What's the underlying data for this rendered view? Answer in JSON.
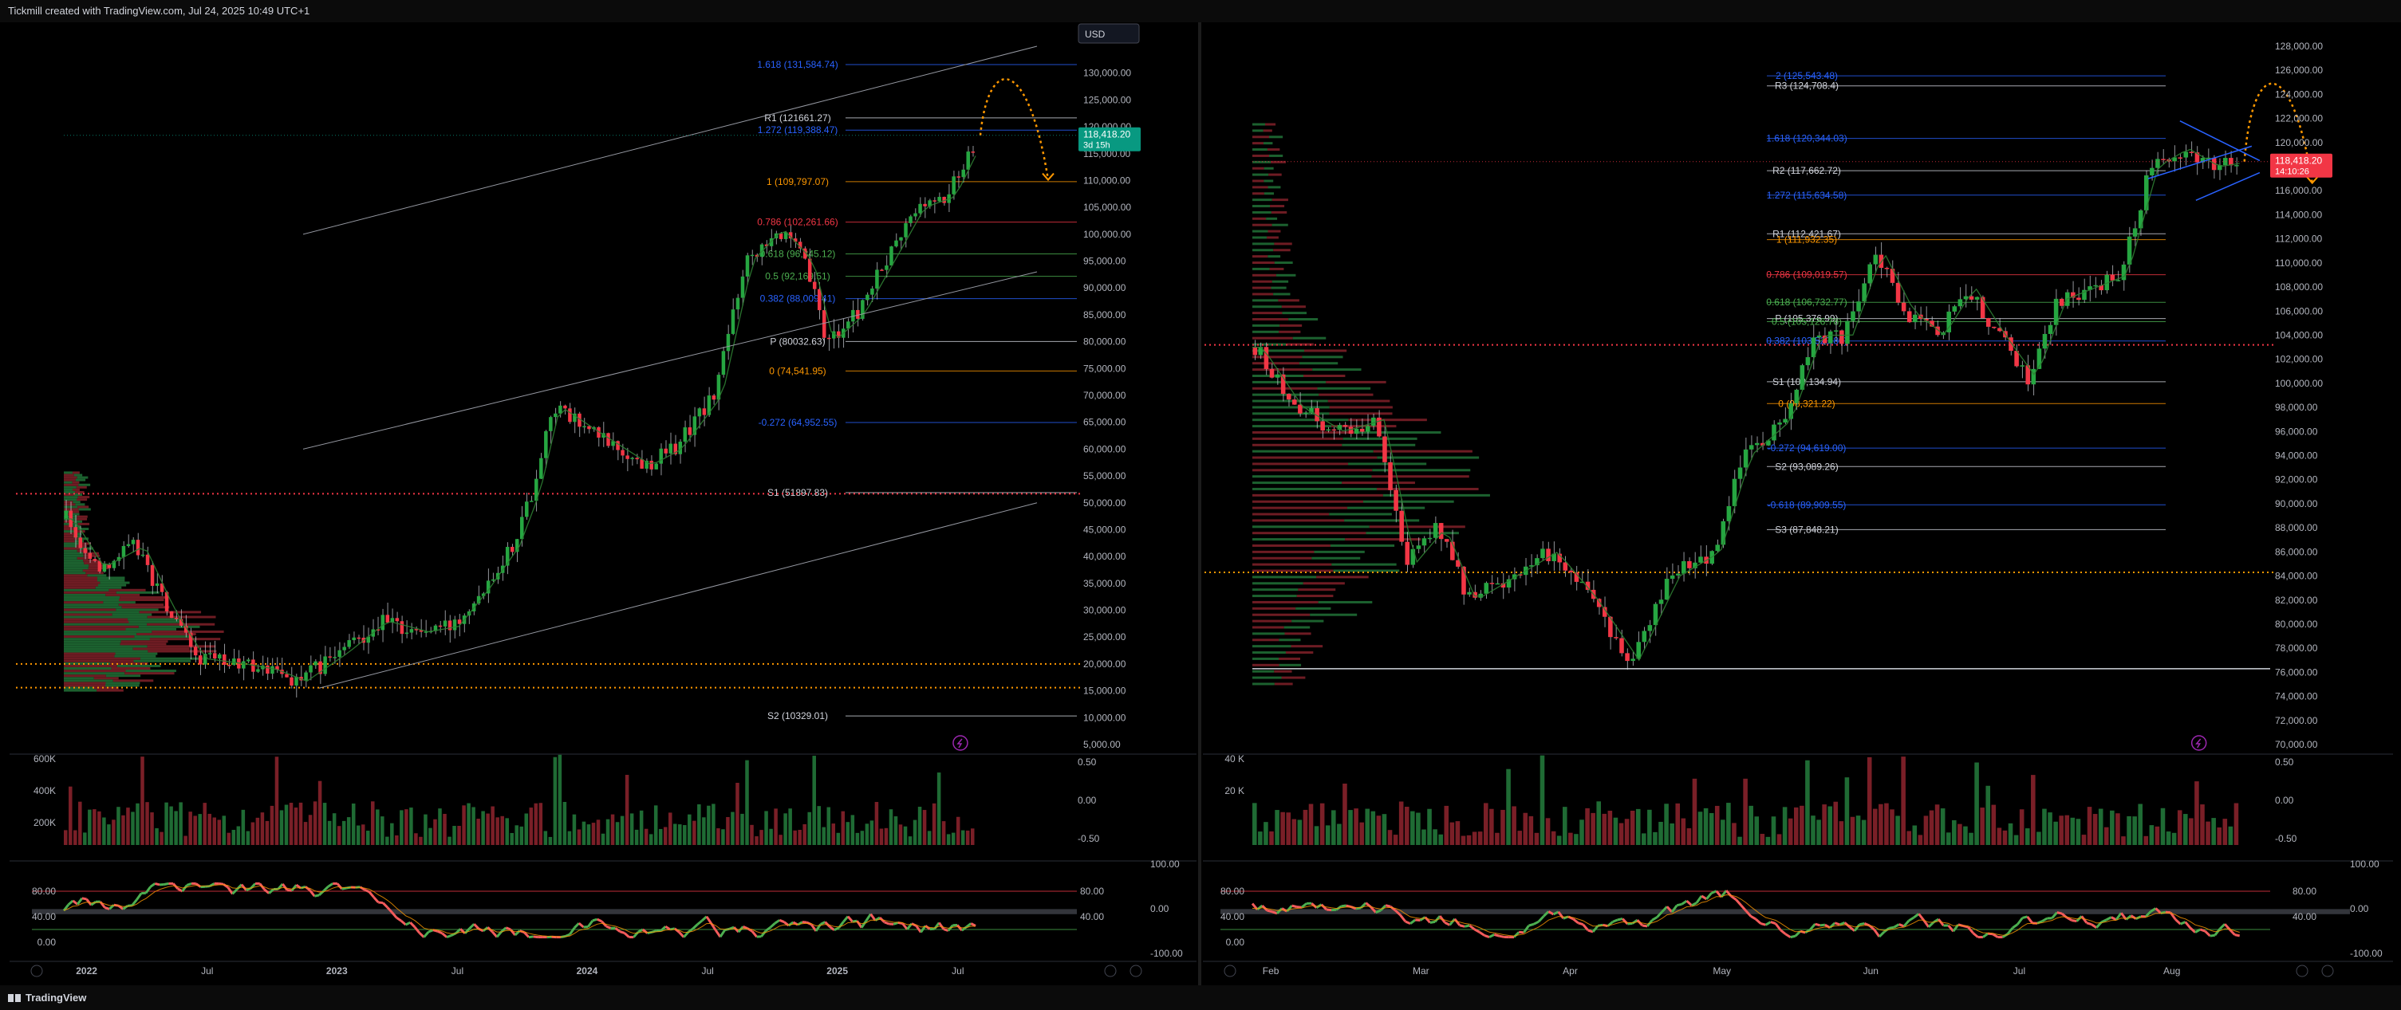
{
  "header": {
    "title": "Tickmill created with TradingView.com, Jul 24, 2025 10:49 UTC+1"
  },
  "footer": {
    "brand": "TradingView"
  },
  "colors": {
    "up": "#26a641",
    "down": "#f23645",
    "fib_blue": "#2962ff",
    "fib_orange": "#ff9800",
    "fib_red": "#f23645",
    "fib_green": "#4caf50",
    "pivot": "#d1d4dc",
    "projection": "#ff9800",
    "price_green": "#089981",
    "price_red": "#f23645"
  },
  "chart_data": [
    {
      "type": "candlestick",
      "title": "",
      "currency_label": "USD",
      "timeframe": "weekly",
      "x_tick_labels": [
        "2022",
        "Jul",
        "2023",
        "Jul",
        "2024",
        "Jul",
        "2025",
        "Jul"
      ],
      "ylim": [
        5000,
        135000
      ],
      "y_ticks": [
        5000,
        10000,
        15000,
        20000,
        25000,
        30000,
        35000,
        40000,
        45000,
        50000,
        55000,
        60000,
        65000,
        70000,
        75000,
        80000,
        85000,
        90000,
        95000,
        100000,
        105000,
        110000,
        115000,
        120000,
        125000,
        130000
      ],
      "y_tick_labels": [
        "5,000.00",
        "10,000.00",
        "15,000.00",
        "20,000.00",
        "25,000.00",
        "30,000.00",
        "35,000.00",
        "40,000.00",
        "45,000.00",
        "50,000.00",
        "55,000.00",
        "60,000.00",
        "65,000.00",
        "70,000.00",
        "75,000.00",
        "80,000.00",
        "85,000.00",
        "90,000.00",
        "95,000.00",
        "100,000.00",
        "105,000.00",
        "110,000.00",
        "115,000.00",
        "120,000.00",
        "125,000.00",
        "130,000.00"
      ],
      "path_points": [
        {
          "t": 0,
          "v": 47000
        },
        {
          "t": 0.03,
          "v": 38000
        },
        {
          "t": 0.07,
          "v": 42000
        },
        {
          "t": 0.1,
          "v": 30000
        },
        {
          "t": 0.13,
          "v": 21000
        },
        {
          "t": 0.17,
          "v": 20000
        },
        {
          "t": 0.2,
          "v": 19000
        },
        {
          "t": 0.23,
          "v": 16800
        },
        {
          "t": 0.27,
          "v": 22000
        },
        {
          "t": 0.31,
          "v": 28000
        },
        {
          "t": 0.35,
          "v": 26000
        },
        {
          "t": 0.38,
          "v": 27000
        },
        {
          "t": 0.41,
          "v": 34000
        },
        {
          "t": 0.44,
          "v": 42000
        },
        {
          "t": 0.46,
          "v": 52000
        },
        {
          "t": 0.48,
          "v": 68000
        },
        {
          "t": 0.52,
          "v": 63000
        },
        {
          "t": 0.57,
          "v": 57000
        },
        {
          "t": 0.6,
          "v": 60000
        },
        {
          "t": 0.64,
          "v": 70000
        },
        {
          "t": 0.67,
          "v": 95000
        },
        {
          "t": 0.7,
          "v": 101000
        },
        {
          "t": 0.73,
          "v": 95000
        },
        {
          "t": 0.75,
          "v": 80000
        },
        {
          "t": 0.78,
          "v": 85000
        },
        {
          "t": 0.81,
          "v": 95000
        },
        {
          "t": 0.84,
          "v": 105000
        },
        {
          "t": 0.87,
          "v": 107000
        },
        {
          "t": 0.9,
          "v": 118400
        }
      ],
      "current_price": {
        "value": 118418.2,
        "label": "118,418.20",
        "countdown": "3d 15h"
      },
      "levels": [
        {
          "name": "1.618 (131,584.74)",
          "value": 131584.74,
          "color": "fib_blue"
        },
        {
          "name": "R1 (121661.27)",
          "value": 121661.27,
          "color": "pivot"
        },
        {
          "name": "1.272 (119,388.47)",
          "value": 119388.47,
          "color": "fib_blue"
        },
        {
          "name": "1 (109,797.07)",
          "value": 109797.07,
          "color": "fib_orange"
        },
        {
          "name": "0.786 (102,261.66)",
          "value": 102261.66,
          "color": "fib_red"
        },
        {
          "name": "0.618 (96,345.12)",
          "value": 96345.12,
          "color": "fib_green"
        },
        {
          "name": "0.5 (92,169.51)",
          "value": 92169.51,
          "color": "fib_green"
        },
        {
          "name": "0.382 (88,009.41)",
          "value": 88009.41,
          "color": "fib_blue"
        },
        {
          "name": "P (80032.63)",
          "value": 80032.63,
          "color": "pivot"
        },
        {
          "name": "0 (74,541.95)",
          "value": 74541.95,
          "color": "fib_orange"
        },
        {
          "name": "-0.272 (64,952.55)",
          "value": 64952.55,
          "color": "fib_blue"
        },
        {
          "name": "S1 (51897.83)",
          "value": 51897.83,
          "color": "pivot"
        },
        {
          "name": "S2 (10329.01)",
          "value": 10329.01,
          "color": "pivot"
        }
      ],
      "dotted_levels": [
        {
          "value": 51700,
          "color": "fib_red"
        },
        {
          "value": 20000,
          "color": "fib_orange"
        },
        {
          "value": 15600,
          "color": "fib_orange"
        }
      ],
      "volume": {
        "y_tick_labels": [
          "600K",
          "400K",
          "200K"
        ],
        "right_labels": [
          "0.50",
          "0.00",
          "-0.50"
        ]
      },
      "oscillator": {
        "left_labels": [
          "80.00",
          "40.00",
          "0.00"
        ],
        "right_labels": [
          "100.00",
          "0.00",
          "-100.00"
        ],
        "mid_labels": [
          "80.00",
          "40.00"
        ]
      }
    },
    {
      "type": "candlestick",
      "title": "",
      "timeframe": "daily",
      "x_tick_labels": [
        "Feb",
        "Mar",
        "Apr",
        "May",
        "Jun",
        "Jul",
        "Aug"
      ],
      "ylim": [
        70000,
        128000
      ],
      "y_ticks": [
        70000,
        72000,
        74000,
        76000,
        78000,
        80000,
        82000,
        84000,
        86000,
        88000,
        90000,
        92000,
        94000,
        96000,
        98000,
        100000,
        102000,
        104000,
        106000,
        108000,
        110000,
        112000,
        114000,
        116000,
        118000,
        120000,
        122000,
        124000,
        126000,
        128000
      ],
      "y_tick_labels": [
        "70,000.00",
        "72,000.00",
        "74,000.00",
        "76,000.00",
        "78,000.00",
        "80,000.00",
        "82,000.00",
        "84,000.00",
        "86,000.00",
        "88,000.00",
        "90,000.00",
        "92,000.00",
        "94,000.00",
        "96,000.00",
        "98,000.00",
        "100,000.00",
        "102,000.00",
        "104,000.00",
        "106,000.00",
        "108,000.00",
        "110,000.00",
        "112,000.00",
        "114,000.00",
        "116,000.00",
        "118,000.00",
        "120,000.00",
        "122,000.00",
        "124,000.00",
        "126,000.00",
        "128,000.00"
      ],
      "path_points": [
        {
          "t": 0,
          "v": 103000
        },
        {
          "t": 0.04,
          "v": 98000
        },
        {
          "t": 0.08,
          "v": 96000
        },
        {
          "t": 0.12,
          "v": 97000
        },
        {
          "t": 0.15,
          "v": 85000
        },
        {
          "t": 0.18,
          "v": 88000
        },
        {
          "t": 0.21,
          "v": 82000
        },
        {
          "t": 0.25,
          "v": 84000
        },
        {
          "t": 0.29,
          "v": 86000
        },
        {
          "t": 0.33,
          "v": 82000
        },
        {
          "t": 0.37,
          "v": 77000
        },
        {
          "t": 0.41,
          "v": 84000
        },
        {
          "t": 0.45,
          "v": 86000
        },
        {
          "t": 0.48,
          "v": 94000
        },
        {
          "t": 0.52,
          "v": 97000
        },
        {
          "t": 0.55,
          "v": 104000
        },
        {
          "t": 0.58,
          "v": 104000
        },
        {
          "t": 0.61,
          "v": 111000
        },
        {
          "t": 0.64,
          "v": 106000
        },
        {
          "t": 0.67,
          "v": 104000
        },
        {
          "t": 0.7,
          "v": 108000
        },
        {
          "t": 0.73,
          "v": 104000
        },
        {
          "t": 0.76,
          "v": 100500
        },
        {
          "t": 0.79,
          "v": 107000
        },
        {
          "t": 0.82,
          "v": 108000
        },
        {
          "t": 0.85,
          "v": 109000
        },
        {
          "t": 0.88,
          "v": 118000
        },
        {
          "t": 0.91,
          "v": 119500
        },
        {
          "t": 0.94,
          "v": 118000
        },
        {
          "t": 0.97,
          "v": 118400
        }
      ],
      "current_price": {
        "value": 118418.2,
        "label": "118,418.20",
        "countdown": "14:10:26"
      },
      "levels": [
        {
          "name": "2 (125,543.48)",
          "value": 125543.48,
          "color": "fib_blue"
        },
        {
          "name": "R3 (124,708.4)",
          "value": 124708.4,
          "color": "pivot"
        },
        {
          "name": "1.618 (120,344.03)",
          "value": 120344.03,
          "color": "fib_blue"
        },
        {
          "name": "R2 (117,662.72)",
          "value": 117662.72,
          "color": "pivot"
        },
        {
          "name": "1.272 (115,634.58)",
          "value": 115634.58,
          "color": "fib_blue"
        },
        {
          "name": "R1 (112,421.67)",
          "value": 112421.67,
          "color": "pivot"
        },
        {
          "name": "1 (111,932.35)",
          "value": 111932.35,
          "color": "fib_orange"
        },
        {
          "name": "0.786 (109,019.57)",
          "value": 109019.57,
          "color": "fib_red"
        },
        {
          "name": "0.618 (106,732.77)",
          "value": 106732.77,
          "color": "fib_green"
        },
        {
          "name": "P (105,376.99)",
          "value": 105376.99,
          "color": "pivot"
        },
        {
          "name": "0.5 (105,126.78)",
          "value": 105126.78,
          "color": "fib_green"
        },
        {
          "name": "0.382 (103,520.80)",
          "value": 103520.8,
          "color": "fib_blue"
        },
        {
          "name": "S1 (100,134.94)",
          "value": 100134.94,
          "color": "pivot"
        },
        {
          "name": "0 (98,321.22)",
          "value": 98321.22,
          "color": "fib_orange"
        },
        {
          "name": "-0.272 (94,619.00)",
          "value": 94619.0,
          "color": "fib_blue"
        },
        {
          "name": "S2 (93,089.26)",
          "value": 93089.26,
          "color": "pivot"
        },
        {
          "name": "-0.618 (89,909.55)",
          "value": 89909.55,
          "color": "fib_blue"
        },
        {
          "name": "S3 (87,848.21)",
          "value": 87848.21,
          "color": "pivot"
        }
      ],
      "dotted_levels": [
        {
          "value": 103200,
          "color": "fib_red"
        },
        {
          "value": 84300,
          "color": "fib_orange"
        }
      ],
      "solid_levels": [
        {
          "value": 76300,
          "color": "pivot"
        }
      ],
      "volume": {
        "y_tick_labels": [
          "40 K",
          "20 K"
        ],
        "right_labels": [
          "0.50",
          "0.00",
          "-0.50"
        ]
      },
      "oscillator": {
        "left_labels": [
          "80.00",
          "40.00",
          "0.00"
        ],
        "right_labels": [
          "100.00",
          "0.00",
          "-100.00"
        ],
        "mid_labels": [
          "80.00",
          "40.00"
        ]
      }
    }
  ]
}
